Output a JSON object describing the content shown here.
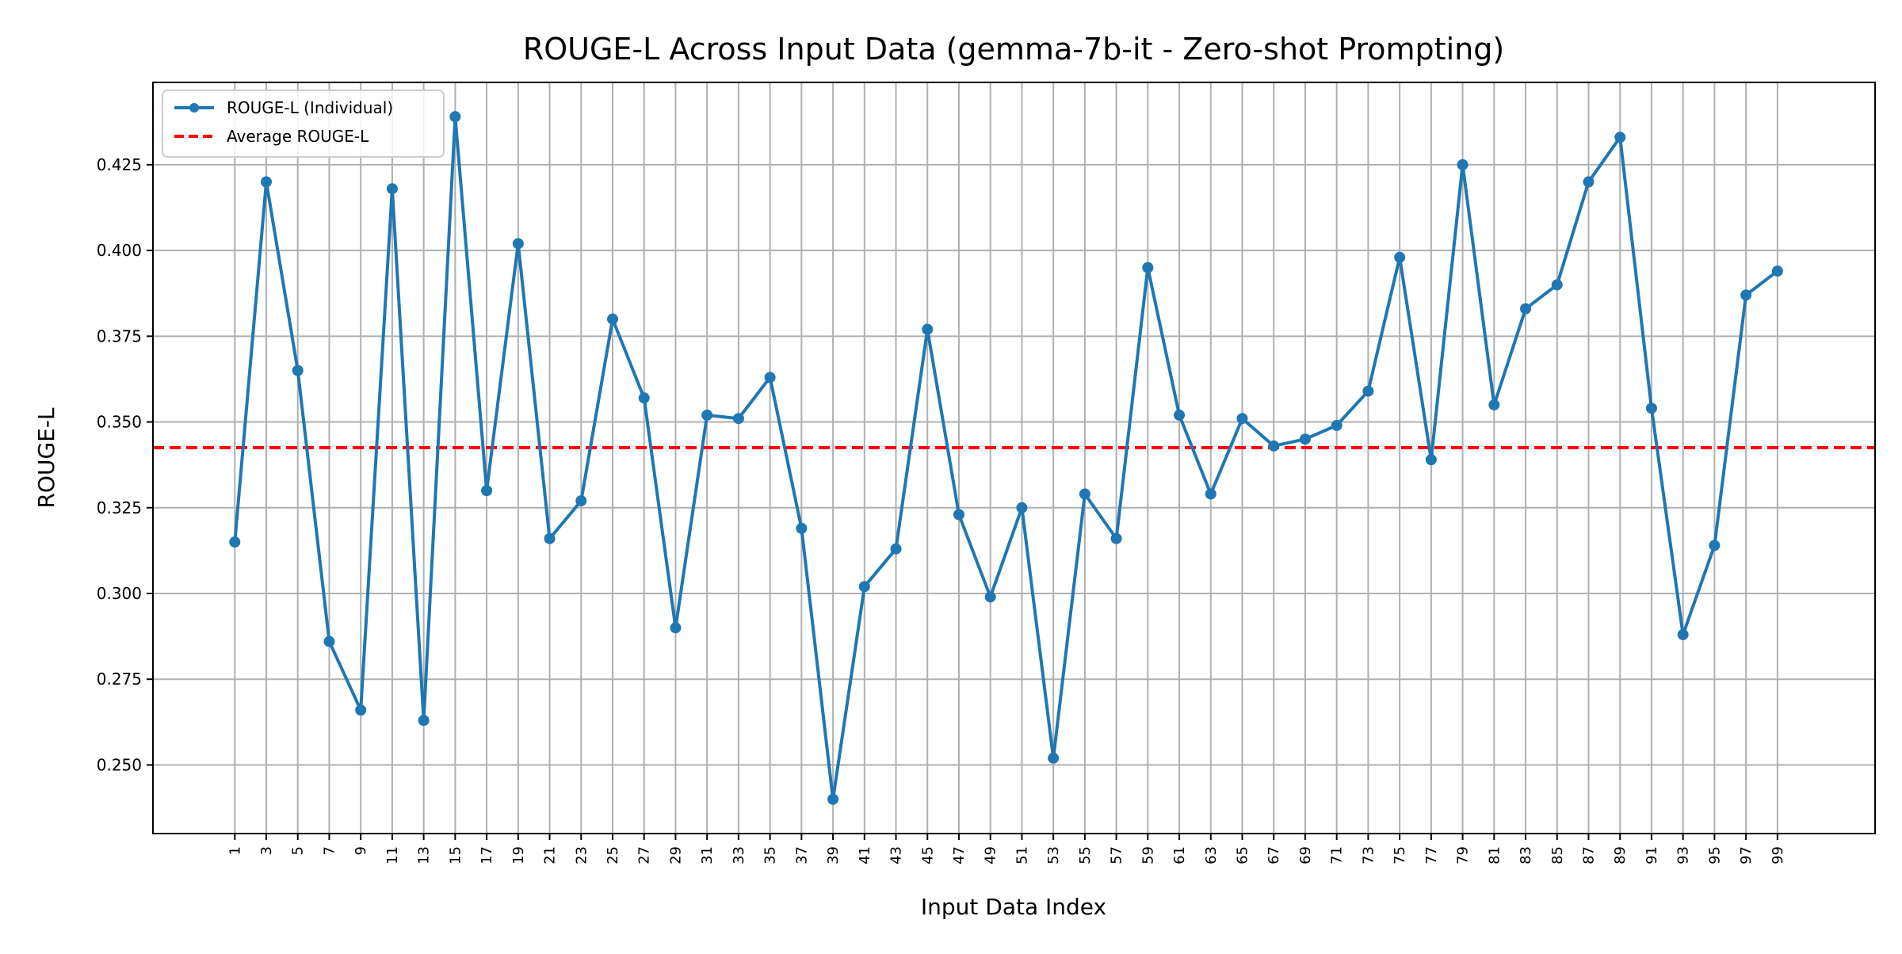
{
  "chart_data": {
    "type": "line",
    "title": "ROUGE-L Across Input Data (gemma-7b-it - Zero-shot Prompting)",
    "xlabel": "Input Data Index",
    "ylabel": "ROUGE-L",
    "x": [
      1,
      3,
      5,
      7,
      9,
      11,
      13,
      15,
      17,
      19,
      21,
      23,
      25,
      27,
      29,
      31,
      33,
      35,
      37,
      39,
      41,
      43,
      45,
      47,
      49,
      51,
      53,
      55,
      57,
      59,
      61,
      63,
      65,
      67,
      69,
      71,
      73,
      75,
      77,
      79,
      81,
      83,
      85,
      87,
      89,
      91,
      93,
      95,
      97,
      99
    ],
    "series": [
      {
        "name": "ROUGE-L (Individual)",
        "values": [
          0.315,
          0.42,
          0.365,
          0.286,
          0.266,
          0.418,
          0.263,
          0.439,
          0.33,
          0.402,
          0.316,
          0.327,
          0.38,
          0.357,
          0.29,
          0.352,
          0.351,
          0.363,
          0.319,
          0.24,
          0.302,
          0.313,
          0.377,
          0.323,
          0.299,
          0.325,
          0.252,
          0.329,
          0.316,
          0.395,
          0.352,
          0.329,
          0.351,
          0.343,
          0.345,
          0.349,
          0.359,
          0.398,
          0.339,
          0.425,
          0.355,
          0.383,
          0.39,
          0.42,
          0.433,
          0.354,
          0.288,
          0.314,
          0.387,
          0.394
        ],
        "color": "#1f77b4"
      },
      {
        "name": "Average ROUGE-L",
        "value": 0.3425,
        "color": "#ff0000",
        "style": "dashed"
      }
    ],
    "yticks": [
      "0.250",
      "0.275",
      "0.300",
      "0.325",
      "0.350",
      "0.375",
      "0.400",
      "0.425"
    ],
    "ylim": [
      0.23,
      0.449
    ],
    "xlim": [
      -4.2,
      105.2
    ],
    "grid": true,
    "legend_position": "top-left"
  }
}
